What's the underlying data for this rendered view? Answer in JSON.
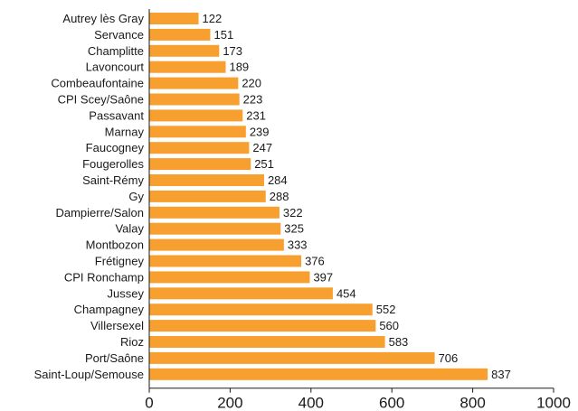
{
  "chart_data": {
    "type": "bar",
    "orientation": "horizontal",
    "title": "",
    "xlabel": "",
    "ylabel": "",
    "xlim": [
      0,
      1000
    ],
    "x_ticks": [
      0,
      200,
      400,
      600,
      800,
      1000
    ],
    "grid": false,
    "legend": "none",
    "bar_color": "#f7a030",
    "categories": [
      "Autrey lès Gray",
      "Servance",
      "Champlitte",
      "Lavoncourt",
      "Combeaufontaine",
      "CPI Scey/Saône",
      "Passavant",
      "Marnay",
      "Faucogney",
      "Fougerolles",
      "Saint-Rémy",
      "Gy",
      "Dampierre/Salon",
      "Valay",
      "Montbozon",
      "Frétigney",
      "CPI Ronchamp",
      "Jussey",
      "Champagney",
      "Villersexel",
      "Rioz",
      "Port/Saône",
      "Saint-Loup/Semouse"
    ],
    "values": [
      122,
      151,
      173,
      189,
      220,
      223,
      231,
      239,
      247,
      251,
      284,
      288,
      322,
      325,
      333,
      376,
      397,
      454,
      552,
      560,
      583,
      706,
      837
    ]
  }
}
